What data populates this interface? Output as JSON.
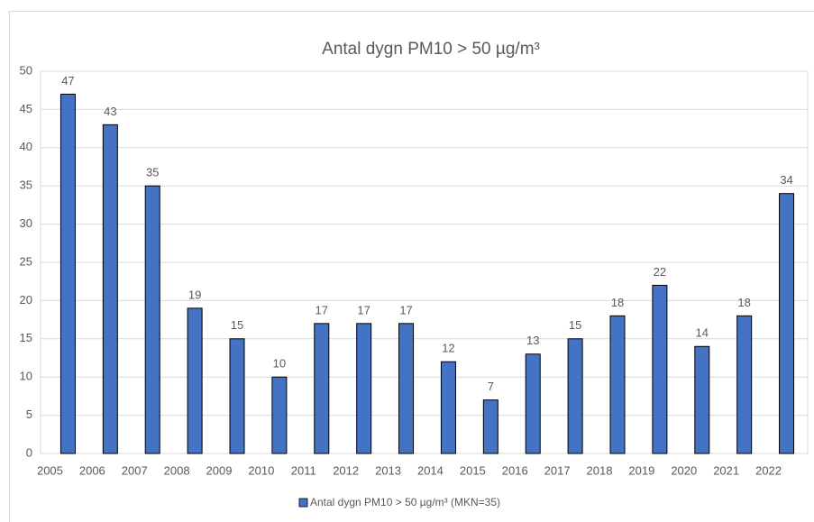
{
  "chart_data": {
    "type": "bar",
    "title": "Antal dygn PM10  > 50 µg/m³",
    "categories": [
      "2005",
      "2006",
      "2007",
      "2008",
      "2009",
      "2010",
      "2011",
      "2012",
      "2013",
      "2014",
      "2015",
      "2016",
      "2017",
      "2018",
      "2019",
      "2020",
      "2021",
      "2022"
    ],
    "series": [
      {
        "name": "Antal dygn PM10 > 50 µg/m³ (MKN=35)",
        "color": "#4472c4",
        "values": [
          47,
          43,
          35,
          19,
          15,
          10,
          17,
          17,
          17,
          12,
          7,
          13,
          15,
          18,
          22,
          14,
          18,
          34
        ]
      }
    ],
    "ylim": [
      0,
      50
    ],
    "yticks": [
      0,
      5,
      10,
      15,
      20,
      25,
      30,
      35,
      40,
      45,
      50
    ],
    "grid": true,
    "legend": "bottom"
  }
}
